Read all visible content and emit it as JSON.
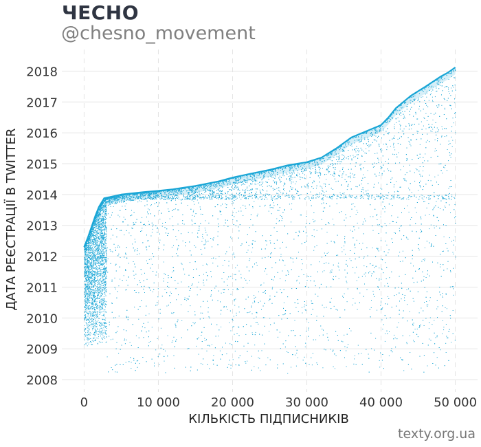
{
  "header": {
    "title": "ЧЕСНО",
    "subtitle": "@chesno_movement"
  },
  "footer": {
    "source": "texty.org.ua"
  },
  "chart_data": {
    "type": "scatter",
    "title": "ЧЕСНО",
    "subtitle": "@chesno_movement",
    "xlabel": "КІЛЬКІСТЬ ПІДПИСНИКІВ",
    "ylabel": "ДАТА РЕЄСТРАЦІЇ В TWITTER",
    "xlim": [
      -3000,
      53000
    ],
    "ylim": [
      2007.6,
      2018.7
    ],
    "x_ticks": [
      0,
      10000,
      20000,
      30000,
      40000,
      50000
    ],
    "x_tick_labels": [
      "0",
      "10 000",
      "20 000",
      "30 000",
      "40 000",
      "50 000"
    ],
    "y_ticks": [
      2008,
      2009,
      2010,
      2011,
      2012,
      2013,
      2014,
      2015,
      2016,
      2017,
      2018
    ],
    "y_tick_labels": [
      "2008",
      "2009",
      "2010",
      "2011",
      "2012",
      "2013",
      "2014",
      "2015",
      "2016",
      "2017",
      "2018"
    ],
    "grid": true,
    "point_color": "#1aa6d6",
    "n_points": 50000,
    "frontier": [
      {
        "x": 0,
        "y": 2012.3
      },
      {
        "x": 500,
        "y": 2012.6
      },
      {
        "x": 1000,
        "y": 2012.95
      },
      {
        "x": 1500,
        "y": 2013.3
      },
      {
        "x": 2000,
        "y": 2013.6
      },
      {
        "x": 2700,
        "y": 2013.88
      },
      {
        "x": 3500,
        "y": 2013.92
      },
      {
        "x": 5000,
        "y": 2014.0
      },
      {
        "x": 8000,
        "y": 2014.08
      },
      {
        "x": 10000,
        "y": 2014.12
      },
      {
        "x": 12000,
        "y": 2014.17
      },
      {
        "x": 15000,
        "y": 2014.28
      },
      {
        "x": 18000,
        "y": 2014.42
      },
      {
        "x": 20000,
        "y": 2014.55
      },
      {
        "x": 22500,
        "y": 2014.68
      },
      {
        "x": 25000,
        "y": 2014.8
      },
      {
        "x": 27500,
        "y": 2014.95
      },
      {
        "x": 30000,
        "y": 2015.05
      },
      {
        "x": 32000,
        "y": 2015.2
      },
      {
        "x": 34000,
        "y": 2015.5
      },
      {
        "x": 36000,
        "y": 2015.85
      },
      {
        "x": 38000,
        "y": 2016.05
      },
      {
        "x": 40000,
        "y": 2016.25
      },
      {
        "x": 41000,
        "y": 2016.5
      },
      {
        "x": 42000,
        "y": 2016.8
      },
      {
        "x": 44000,
        "y": 2017.2
      },
      {
        "x": 46000,
        "y": 2017.5
      },
      {
        "x": 48000,
        "y": 2017.82
      },
      {
        "x": 49000,
        "y": 2017.95
      },
      {
        "x": 50000,
        "y": 2018.12
      }
    ]
  }
}
